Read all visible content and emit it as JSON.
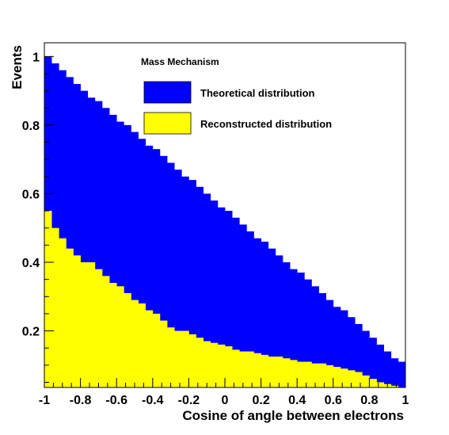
{
  "chart_data": {
    "type": "area",
    "histogram": true,
    "title": "",
    "xlabel": "Cosine of angle between electrons",
    "ylabel": "Events",
    "xlim": [
      -1,
      1
    ],
    "ylim": [
      0.035,
      1.04
    ],
    "bins": 50,
    "x_ticks": [
      {
        "value": -1,
        "label": "-1"
      },
      {
        "value": -0.8,
        "label": "-0.8"
      },
      {
        "value": -0.6,
        "label": "-0.6"
      },
      {
        "value": -0.4,
        "label": "-0.4"
      },
      {
        "value": -0.2,
        "label": "-0.2"
      },
      {
        "value": 0,
        "label": "0"
      },
      {
        "value": 0.2,
        "label": "0.2"
      },
      {
        "value": 0.4,
        "label": "0.4"
      },
      {
        "value": 0.6,
        "label": "0.6"
      },
      {
        "value": 0.8,
        "label": "0.8"
      },
      {
        "value": 1,
        "label": "1"
      }
    ],
    "y_ticks": [
      {
        "value": 0.2,
        "label": "0.2"
      },
      {
        "value": 0.4,
        "label": "0.4"
      },
      {
        "value": 0.6,
        "label": "0.6"
      },
      {
        "value": 0.8,
        "label": "0.8"
      },
      {
        "value": 1,
        "label": "1"
      }
    ],
    "legend": {
      "header": "Mass Mechanism",
      "placement": "top-center"
    },
    "series": [
      {
        "name": "Theoretical distribution",
        "color": "#0000ff",
        "values": [
          1.0,
          0.98,
          0.96,
          0.94,
          0.92,
          0.9,
          0.88,
          0.87,
          0.85,
          0.83,
          0.81,
          0.8,
          0.78,
          0.76,
          0.74,
          0.73,
          0.71,
          0.69,
          0.67,
          0.65,
          0.64,
          0.62,
          0.6,
          0.58,
          0.56,
          0.55,
          0.53,
          0.51,
          0.49,
          0.47,
          0.46,
          0.44,
          0.42,
          0.4,
          0.38,
          0.37,
          0.35,
          0.33,
          0.31,
          0.29,
          0.27,
          0.26,
          0.24,
          0.22,
          0.2,
          0.18,
          0.16,
          0.14,
          0.12,
          0.11
        ]
      },
      {
        "name": "Reconstructed distribution",
        "color": "#ffff00",
        "values": [
          0.55,
          0.5,
          0.47,
          0.44,
          0.42,
          0.4,
          0.4,
          0.38,
          0.36,
          0.34,
          0.33,
          0.31,
          0.29,
          0.28,
          0.26,
          0.25,
          0.23,
          0.21,
          0.2,
          0.2,
          0.19,
          0.18,
          0.17,
          0.165,
          0.16,
          0.155,
          0.145,
          0.14,
          0.14,
          0.135,
          0.13,
          0.125,
          0.125,
          0.12,
          0.115,
          0.11,
          0.11,
          0.105,
          0.105,
          0.1,
          0.095,
          0.09,
          0.085,
          0.08,
          0.07,
          0.06,
          0.05,
          0.045,
          0.04,
          0.035
        ]
      }
    ]
  }
}
